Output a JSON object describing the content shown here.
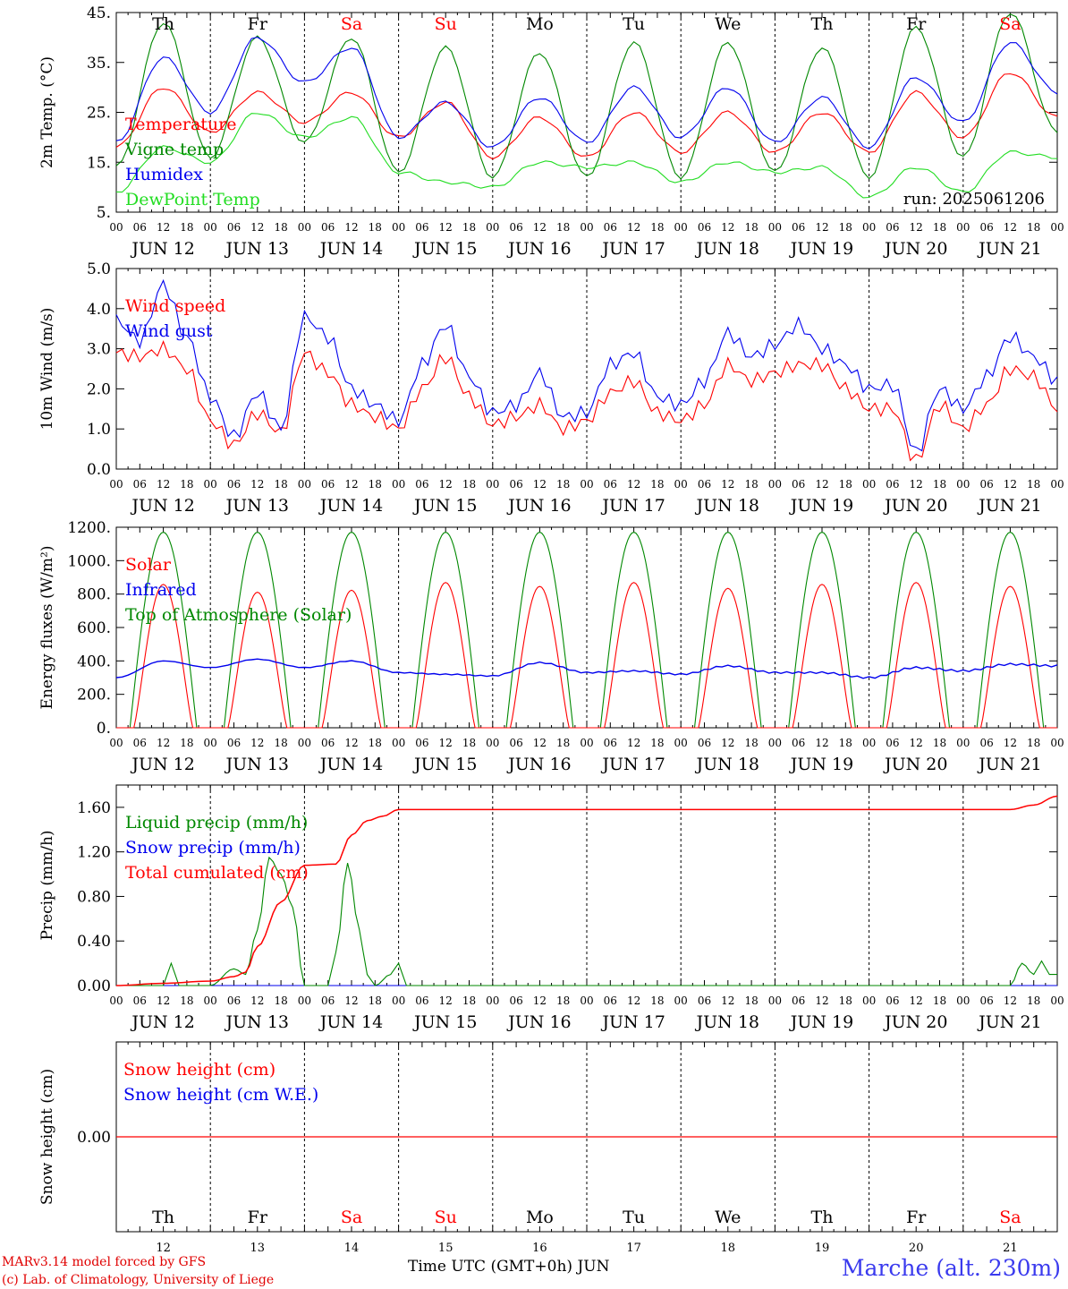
{
  "credits": {
    "line1": "MARv3.14 model forced by GFS",
    "line2": "(c) Lab. of Climatology, University of Liege"
  },
  "station": "Marche (alt. 230m)",
  "x_axis_title": "Time UTC (GMT+0h)",
  "month_label": "JUN",
  "run_label": "run: 2025061206",
  "days": [
    {
      "weekday": "Th",
      "date": "JUN 12",
      "num": "12",
      "weekend": false
    },
    {
      "weekday": "Fr",
      "date": "JUN 13",
      "num": "13",
      "weekend": false
    },
    {
      "weekday": "Sa",
      "date": "JUN 14",
      "num": "14",
      "weekend": true
    },
    {
      "weekday": "Su",
      "date": "JUN 15",
      "num": "15",
      "weekend": true
    },
    {
      "weekday": "Mo",
      "date": "JUN 16",
      "num": "16",
      "weekend": false
    },
    {
      "weekday": "Tu",
      "date": "JUN 17",
      "num": "17",
      "weekend": false
    },
    {
      "weekday": "We",
      "date": "JUN 18",
      "num": "18",
      "weekend": false
    },
    {
      "weekday": "Th",
      "date": "JUN 19",
      "num": "19",
      "weekend": false
    },
    {
      "weekday": "Fr",
      "date": "JUN 20",
      "num": "20",
      "weekend": false
    },
    {
      "weekday": "Sa",
      "date": "JUN 21",
      "num": "21",
      "weekend": true
    }
  ],
  "hour_ticks": [
    "00",
    "06",
    "12",
    "18"
  ],
  "colors": {
    "red": "#ff0000",
    "green": "#008800",
    "blue": "#0000ee",
    "lightgreen": "#22dd22",
    "weekend": "#ff0000"
  },
  "chart_data": [
    {
      "type": "line",
      "ylabel": "2m Temp. (°C)",
      "ylim": [
        5,
        45
      ],
      "yticks": [
        "5.",
        "15.",
        "25.",
        "35.",
        "45."
      ],
      "x_hours": [
        0,
        12,
        24,
        36,
        48,
        60,
        72,
        84,
        96,
        108,
        120,
        132,
        144,
        156,
        168,
        180,
        192,
        204,
        216,
        228,
        240
      ],
      "series": [
        {
          "name": "Temperature",
          "color": "red",
          "values": [
            18,
            30,
            21,
            29,
            23,
            29,
            20,
            27,
            16,
            24,
            16,
            25,
            17,
            25,
            17,
            25,
            17,
            29,
            20,
            33,
            24
          ]
        },
        {
          "name": "Vigne temp",
          "color": "green",
          "values": [
            14,
            43,
            16,
            40,
            19,
            40,
            13,
            38,
            12,
            37,
            12,
            39,
            12,
            39,
            13,
            38,
            12,
            42,
            16,
            45,
            21
          ]
        },
        {
          "name": "Humidex",
          "color": "blue",
          "values": [
            19,
            36,
            25,
            40,
            31,
            38,
            20,
            27,
            18,
            28,
            19,
            30,
            20,
            30,
            19,
            28,
            18,
            32,
            23,
            39,
            29
          ]
        },
        {
          "name": "DewPoint Temp",
          "color": "lightgreen",
          "values": [
            9,
            18,
            15,
            25,
            20,
            24,
            13,
            11,
            10,
            15,
            14,
            15,
            11,
            15,
            13,
            14,
            8,
            14,
            9,
            17,
            16
          ]
        }
      ]
    },
    {
      "type": "line",
      "ylabel": "10m Wind (m/s)",
      "ylim": [
        0,
        5
      ],
      "yticks": [
        "0.0",
        "1.0",
        "2.0",
        "3.0",
        "4.0",
        "5.0"
      ],
      "x_hours": [
        0,
        6,
        12,
        18,
        24,
        30,
        36,
        42,
        48,
        54,
        60,
        66,
        72,
        78,
        84,
        90,
        96,
        102,
        108,
        114,
        120,
        126,
        132,
        138,
        144,
        150,
        156,
        162,
        168,
        174,
        180,
        186,
        192,
        198,
        204,
        210,
        216,
        222,
        228,
        234,
        240
      ],
      "series": [
        {
          "name": "Wind speed",
          "color": "red",
          "values": [
            2.9,
            2.8,
            3.0,
            2.5,
            1.2,
            0.6,
            1.4,
            0.9,
            2.9,
            2.4,
            1.6,
            1.3,
            1.0,
            2.0,
            2.8,
            1.8,
            1.1,
            1.3,
            1.6,
            1.0,
            1.2,
            1.9,
            2.2,
            1.4,
            1.2,
            1.6,
            2.6,
            2.2,
            2.4,
            2.6,
            2.6,
            2.0,
            1.5,
            1.5,
            0.2,
            1.6,
            1.0,
            1.6,
            2.5,
            2.3,
            1.5
          ]
        },
        {
          "name": "Wind gust",
          "color": "blue",
          "values": [
            3.7,
            3.2,
            4.6,
            3.3,
            1.8,
            0.8,
            1.9,
            1.0,
            3.8,
            3.3,
            2.0,
            1.6,
            1.2,
            2.6,
            3.6,
            2.3,
            1.4,
            1.6,
            2.4,
            1.3,
            1.4,
            2.6,
            2.9,
            1.8,
            1.6,
            2.2,
            3.4,
            2.8,
            3.1,
            3.6,
            3.0,
            2.6,
            2.0,
            2.1,
            0.4,
            2.0,
            1.5,
            2.3,
            3.3,
            2.8,
            2.2
          ]
        }
      ]
    },
    {
      "type": "line",
      "ylabel": "Energy fluxes (W/m²)",
      "ylim": [
        0,
        1200
      ],
      "yticks": [
        "0.",
        "200.",
        "400.",
        "600.",
        "800.",
        "1000.",
        "1200."
      ],
      "series": [
        {
          "name": "Solar",
          "color": "red",
          "day_peaks": [
            880,
            840,
            850,
            890,
            870,
            890,
            860,
            880,
            890,
            870
          ]
        },
        {
          "name": "Infrared",
          "color": "blue",
          "values": [
            300,
            400,
            360,
            410,
            360,
            400,
            330,
            320,
            310,
            390,
            330,
            340,
            320,
            370,
            330,
            330,
            300,
            360,
            340,
            380
          ]
        },
        {
          "name": "Top of Atmosphere (Solar)",
          "color": "green",
          "day_peaks": [
            1170,
            1170,
            1170,
            1170,
            1170,
            1170,
            1170,
            1170,
            1170,
            1170
          ]
        }
      ]
    },
    {
      "type": "line",
      "ylabel": "Precip (mm/h)",
      "ylim": [
        0,
        1.8
      ],
      "yticks": [
        "0.00",
        "0.40",
        "0.80",
        "1.20",
        "1.60"
      ],
      "series": [
        {
          "name": "Liquid precip (mm/h)",
          "color": "green",
          "x_hours": [
            0,
            12,
            14,
            16,
            18,
            24,
            30,
            33,
            36,
            39,
            42,
            45,
            48,
            50,
            54,
            56,
            59,
            62,
            64,
            66,
            70,
            72,
            74,
            76,
            78,
            228,
            231,
            234,
            236,
            238,
            240
          ],
          "values": [
            0,
            0,
            0.2,
            0,
            0,
            0,
            0.15,
            0.1,
            0.5,
            1.15,
            1.0,
            0.7,
            0,
            0,
            0,
            0.3,
            1.1,
            0.5,
            0.1,
            0,
            0.1,
            0.2,
            0,
            0,
            0,
            0,
            0.2,
            0.1,
            0.22,
            0.1,
            0.1
          ]
        },
        {
          "name": "Snow precip (mm/h)",
          "color": "blue",
          "x_hours": [
            0,
            240
          ],
          "values": [
            0,
            0
          ]
        },
        {
          "name": "Total cumulated (cm)",
          "color": "red",
          "x_hours": [
            0,
            12,
            24,
            30,
            33,
            36,
            42,
            48,
            56,
            60,
            64,
            68,
            72,
            78,
            228,
            234,
            240
          ],
          "values": [
            0,
            0.02,
            0.04,
            0.08,
            0.12,
            0.35,
            0.75,
            1.08,
            1.09,
            1.35,
            1.48,
            1.52,
            1.58,
            1.58,
            1.58,
            1.62,
            1.7
          ]
        }
      ]
    },
    {
      "type": "line",
      "ylabel": "Snow height (cm)",
      "ylim": [
        -1,
        1
      ],
      "yticks": [
        "0.00"
      ],
      "series": [
        {
          "name": "Snow height (cm)",
          "color": "red",
          "x_hours": [
            0,
            240
          ],
          "values": [
            0,
            0
          ]
        },
        {
          "name": "Snow height (cm W.E.)",
          "color": "blue",
          "x_hours": [
            0,
            240
          ],
          "values": [
            0,
            0
          ]
        }
      ]
    }
  ]
}
